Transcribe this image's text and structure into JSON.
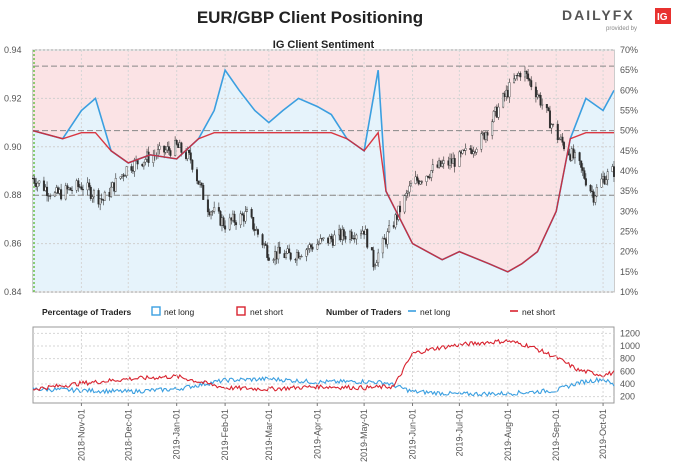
{
  "header": {
    "title": "EUR/GBP Client Positioning",
    "logo_main": "DAILYFX",
    "logo_sub": "provided by",
    "logo_badge": "IG"
  },
  "colors": {
    "net_long": "#3b9fe0",
    "net_short": "#d8232f",
    "long_zone": "#e6f3fb",
    "short_zone": "#fbe3e5",
    "candle": "#2d2d2d",
    "dashed": "#888888",
    "logo_x": "#e8502b",
    "logo_badge": "#e8312f"
  },
  "chart_data": [
    {
      "type": "line",
      "title": "IG Client Sentiment",
      "subtype": "candlestick price with net-long percentage overlay",
      "x_range": [
        "2018-10-01",
        "2019-10-08"
      ],
      "y_left": {
        "label": "",
        "range": [
          0.84,
          0.94
        ],
        "ticks": [
          "0.84",
          "0.86",
          "0.88",
          "0.90",
          "0.92",
          "0.94"
        ],
        "values": [
          0.84,
          0.86,
          0.88,
          0.9,
          0.92,
          0.94
        ]
      },
      "y_right": {
        "label": "",
        "range": [
          10,
          70
        ],
        "ticks": [
          "10%",
          "15%",
          "20%",
          "25%",
          "30%",
          "35%",
          "40%",
          "45%",
          "50%",
          "55%",
          "60%",
          "65%",
          "70%"
        ],
        "values": [
          10,
          15,
          20,
          25,
          30,
          35,
          40,
          45,
          50,
          55,
          60,
          65,
          70
        ]
      },
      "reference_lines_pct": [
        66,
        50,
        34
      ],
      "grid": true,
      "price_series": {
        "name": "EUR/GBP",
        "x": [
          "2018-10-01",
          "2018-10-15",
          "2018-11-01",
          "2018-11-15",
          "2018-12-01",
          "2018-12-15",
          "2019-01-01",
          "2019-01-10",
          "2019-01-20",
          "2019-02-01",
          "2019-02-15",
          "2019-03-01",
          "2019-03-15",
          "2019-04-01",
          "2019-04-15",
          "2019-05-01",
          "2019-05-07",
          "2019-05-15",
          "2019-06-01",
          "2019-06-15",
          "2019-07-01",
          "2019-07-15",
          "2019-08-01",
          "2019-08-10",
          "2019-08-20",
          "2019-09-01",
          "2019-09-15",
          "2019-09-25",
          "2019-10-01",
          "2019-10-08"
        ],
        "y": [
          0.887,
          0.88,
          0.884,
          0.878,
          0.892,
          0.896,
          0.9,
          0.895,
          0.876,
          0.868,
          0.872,
          0.856,
          0.855,
          0.86,
          0.863,
          0.866,
          0.852,
          0.862,
          0.885,
          0.891,
          0.895,
          0.903,
          0.923,
          0.932,
          0.922,
          0.905,
          0.893,
          0.88,
          0.887,
          0.89
        ]
      },
      "series": [
        {
          "name": "net long %",
          "x": [
            "2018-10-01",
            "2018-10-20",
            "2018-11-01",
            "2018-11-10",
            "2018-11-20",
            "2018-12-01",
            "2018-12-15",
            "2019-01-01",
            "2019-01-15",
            "2019-01-25",
            "2019-02-01",
            "2019-02-10",
            "2019-02-20",
            "2019-03-01",
            "2019-03-10",
            "2019-03-20",
            "2019-04-01",
            "2019-04-10",
            "2019-04-20",
            "2019-05-01",
            "2019-05-10",
            "2019-05-15",
            "2019-06-01",
            "2019-06-20",
            "2019-07-01",
            "2019-07-20",
            "2019-08-01",
            "2019-08-10",
            "2019-08-20",
            "2019-09-01",
            "2019-09-10",
            "2019-09-20",
            "2019-10-01",
            "2019-10-08"
          ],
          "values": [
            50,
            48,
            55,
            58,
            45,
            42,
            44,
            43,
            48,
            55,
            65,
            60,
            55,
            52,
            55,
            58,
            56,
            54,
            48,
            45,
            65,
            35,
            22,
            18,
            20,
            17,
            15,
            17,
            20,
            30,
            48,
            58,
            55,
            60
          ]
        }
      ]
    },
    {
      "type": "line",
      "title": "",
      "x_axis": "shared",
      "x_ticks": [
        "2018-Nov-01",
        "2018-Dec-01",
        "2019-Jan-01",
        "2019-Feb-01",
        "2019-Mar-01",
        "2019-Apr-01",
        "2019-May-01",
        "2019-Jun-01",
        "2019-Jul-01",
        "2019-Aug-01",
        "2019-Sep-01",
        "2019-Oct-01"
      ],
      "y_right": {
        "range": [
          100,
          1300
        ],
        "ticks": [
          "200",
          "400",
          "600",
          "800",
          "1000",
          "1200"
        ],
        "values": [
          200,
          400,
          600,
          800,
          1000,
          1200
        ]
      },
      "legend": {
        "pct_title": "Percentage of Traders",
        "pct_long": "net long",
        "pct_short": "net short",
        "num_title": "Number of Traders",
        "num_long": "net long",
        "num_short": "net short"
      },
      "series": [
        {
          "name": "net long",
          "x": [
            "2018-10-01",
            "2018-11-01",
            "2018-12-01",
            "2019-01-01",
            "2019-02-01",
            "2019-03-01",
            "2019-04-01",
            "2019-05-01",
            "2019-05-15",
            "2019-06-01",
            "2019-07-01",
            "2019-08-01",
            "2019-09-01",
            "2019-09-15",
            "2019-10-01",
            "2019-10-08"
          ],
          "values": [
            320,
            300,
            280,
            320,
            460,
            480,
            430,
            440,
            420,
            280,
            240,
            250,
            300,
            420,
            480,
            380
          ]
        },
        {
          "name": "net short",
          "x": [
            "2018-10-01",
            "2018-11-01",
            "2018-12-01",
            "2019-01-01",
            "2019-02-01",
            "2019-03-01",
            "2019-04-01",
            "2019-05-01",
            "2019-05-20",
            "2019-06-01",
            "2019-06-15",
            "2019-07-01",
            "2019-07-20",
            "2019-08-01",
            "2019-08-15",
            "2019-09-01",
            "2019-09-15",
            "2019-10-01",
            "2019-10-08"
          ],
          "values": [
            320,
            410,
            480,
            520,
            340,
            320,
            360,
            340,
            360,
            880,
            960,
            1020,
            1060,
            1080,
            1000,
            820,
            620,
            540,
            580
          ]
        }
      ]
    }
  ]
}
